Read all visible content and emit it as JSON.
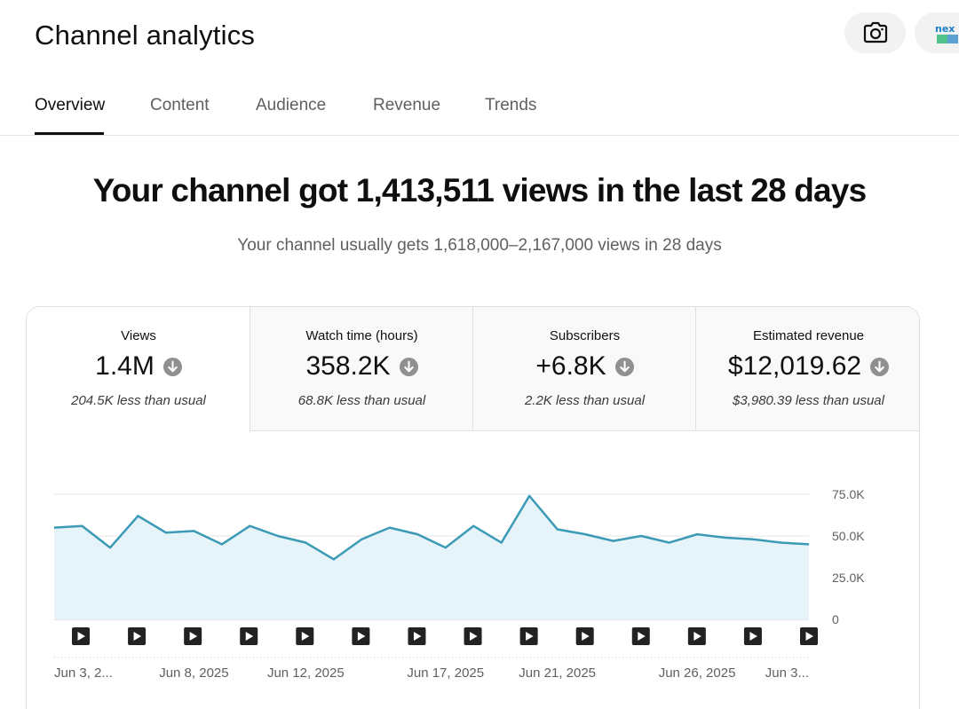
{
  "header": {
    "title": "Channel analytics",
    "camera_icon": "camera-icon",
    "avatar_text": "nex"
  },
  "tabs": [
    {
      "label": "Overview",
      "active": true
    },
    {
      "label": "Content",
      "active": false
    },
    {
      "label": "Audience",
      "active": false
    },
    {
      "label": "Revenue",
      "active": false
    },
    {
      "label": "Trends",
      "active": false
    }
  ],
  "summary": {
    "headline": "Your channel got 1,413,511 views in the last 28 days",
    "subline": "Your channel usually gets 1,618,000–2,167,000 views in 28 days"
  },
  "metrics": [
    {
      "label": "Views",
      "value": "1.4M",
      "note": "204.5K less than usual",
      "icon": "arrow-down-circle-icon"
    },
    {
      "label": "Watch time (hours)",
      "value": "358.2K",
      "note": "68.8K less than usual",
      "icon": "arrow-down-circle-icon"
    },
    {
      "label": "Subscribers",
      "value": "+6.8K",
      "note": "2.2K less than usual",
      "icon": "arrow-down-circle-icon"
    },
    {
      "label": "Estimated revenue",
      "value": "$12,019.62",
      "note": "$3,980.39 less than usual",
      "icon": "arrow-down-circle-icon"
    }
  ],
  "chart_data": {
    "type": "area",
    "y_ticks": [
      "75.0K",
      "50.0K",
      "25.0K",
      "0"
    ],
    "ylim": [
      0,
      75000
    ],
    "x_tick_labels": [
      "Jun 3, 2...",
      "Jun 8, 2025",
      "Jun 12, 2025",
      "Jun 17, 2025",
      "Jun 21, 2025",
      "Jun 26, 2025",
      "Jun 3..."
    ],
    "x_tick_indices": [
      0,
      5,
      9,
      14,
      18,
      23,
      27
    ],
    "series": [
      {
        "values": [
          55000,
          56000,
          43000,
          62000,
          52000,
          53000,
          45000,
          56000,
          50000,
          46000,
          36000,
          48000,
          55000,
          51000,
          43000,
          56000,
          46000,
          74000,
          54000,
          51000,
          47000,
          50000,
          46000,
          51000,
          49000,
          48000,
          46000,
          45000
        ]
      }
    ],
    "video_markers": 14,
    "line_color": "#3b9ab5",
    "fill_color": "#e6f3f8",
    "grid": true
  }
}
